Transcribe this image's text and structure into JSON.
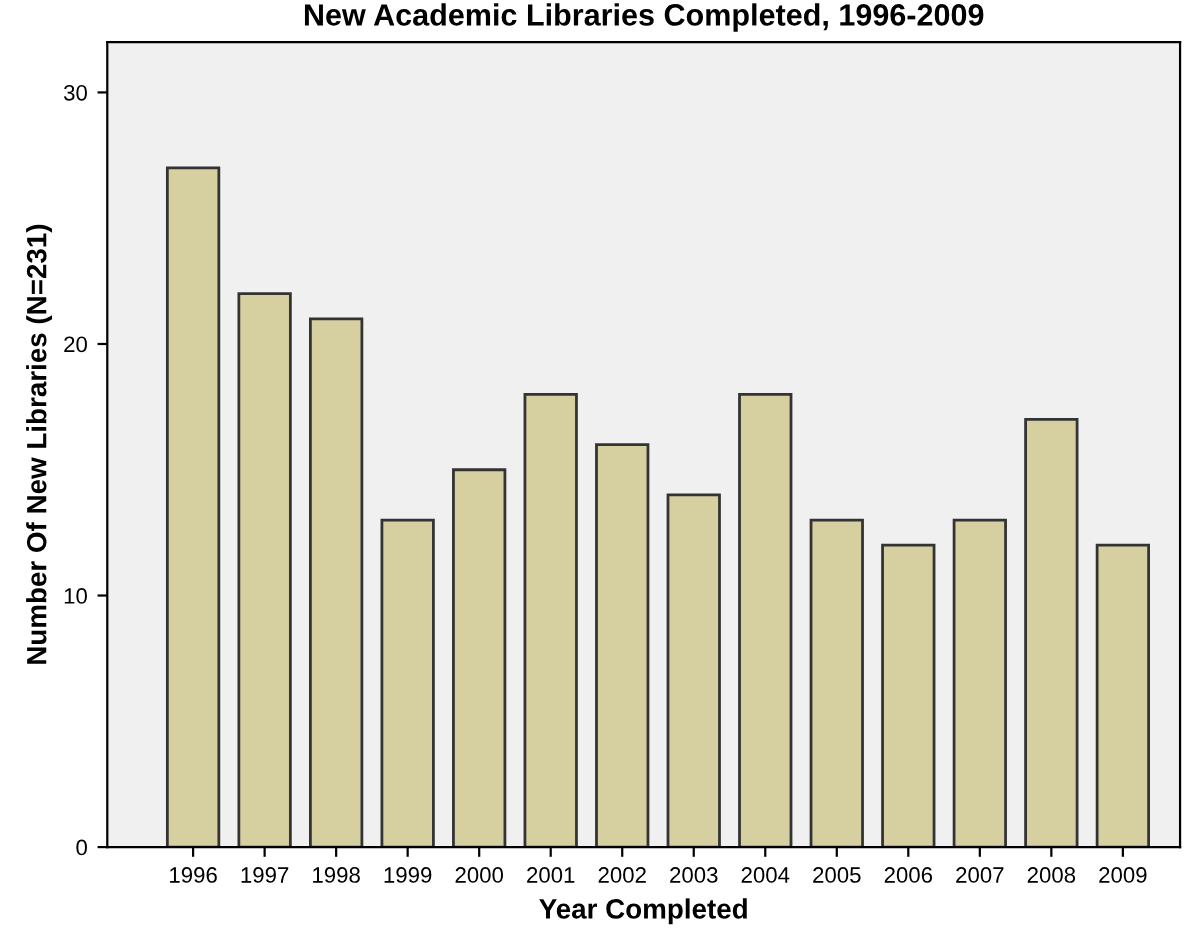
{
  "chart_data": {
    "type": "bar",
    "title": "New Academic Libraries Completed, 1996-2009",
    "xlabel": "Year Completed",
    "ylabel": "Number Of New Libraries (N=231)",
    "categories": [
      "1996",
      "1997",
      "1998",
      "1999",
      "2000",
      "2001",
      "2002",
      "2003",
      "2004",
      "2005",
      "2006",
      "2007",
      "2008",
      "2009"
    ],
    "values": [
      27,
      22,
      21,
      13,
      15,
      18,
      16,
      14,
      18,
      13,
      12,
      13,
      17,
      12
    ],
    "color": "#d6d0a0",
    "ylim": [
      0,
      32
    ],
    "yticks": [
      0,
      10,
      20,
      30
    ],
    "grid": false
  }
}
